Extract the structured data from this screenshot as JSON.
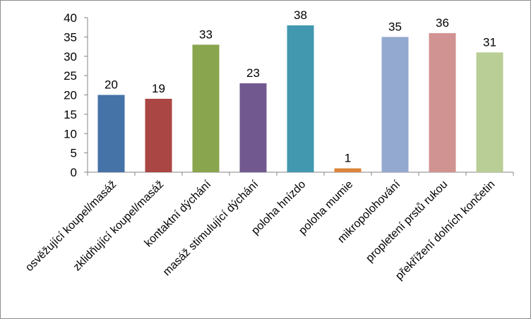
{
  "chart_data": {
    "type": "bar",
    "categories": [
      "osvěžující koupel/masáž",
      "zklidňující koupel/masáž",
      "kontaktní dýchání",
      "masáž stimulující dýchání",
      "poloha hnízdo",
      "poloha mumie",
      "mikropolohování",
      "propletení prstů rukou",
      "překřížení dolních končetin"
    ],
    "values": [
      20,
      19,
      33,
      23,
      38,
      1,
      35,
      36,
      31
    ],
    "colors": [
      "#4572a7",
      "#aa4643",
      "#89a54e",
      "#71588f",
      "#4198af",
      "#db843d",
      "#93a9cf",
      "#d19392",
      "#b9cd96"
    ],
    "ylim": [
      0,
      40
    ],
    "yticks": [
      "0",
      "5",
      "10",
      "15",
      "20",
      "25",
      "30",
      "35",
      "40"
    ],
    "data_labels": [
      "20",
      "19",
      "33",
      "23",
      "38",
      "1",
      "35",
      "36",
      "31"
    ],
    "grid": false,
    "legend": "none"
  }
}
